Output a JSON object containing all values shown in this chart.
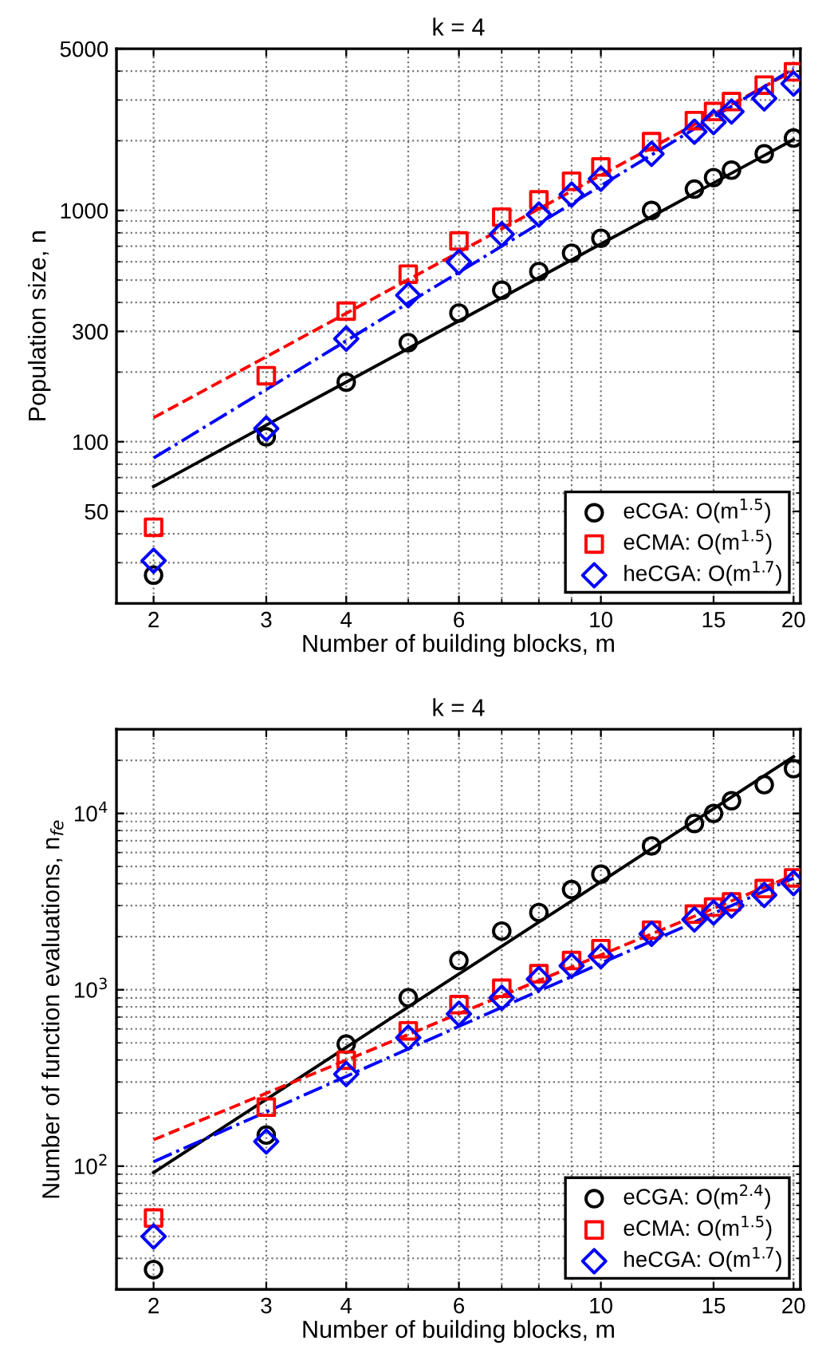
{
  "chart_data": [
    {
      "type": "scatter",
      "title": "k = 4",
      "xlabel": "Number of building blocks, m",
      "ylabel": "Population size, n",
      "log": "xy",
      "grid": true,
      "legend": "bottom right",
      "xlim": [
        1.75,
        20.5
      ],
      "xticks": [
        2,
        3,
        4,
        6,
        10,
        15,
        20
      ],
      "ylim": [
        20,
        5000
      ],
      "yticks": [
        50,
        100,
        300,
        1000,
        5000
      ],
      "x": [
        2,
        3,
        4,
        5,
        6,
        7,
        8,
        9,
        10,
        12,
        14,
        15,
        16,
        18,
        20
      ],
      "series": [
        {
          "name": "eCGA: O(m$^{1.5}$)",
          "color": "#000000",
          "marker": "circle",
          "values": [
            26.5,
            105,
            181,
            268,
            360,
            452,
            544,
            653,
            758,
            1000,
            1236,
            1386,
            1493,
            1757,
            2055
          ]
        },
        {
          "name": "eCMA: O(m$^{1.5}$)",
          "color": "#ff0000",
          "marker": "square",
          "values": [
            42.7,
            193,
            367,
            530,
            738,
            935,
            1111,
            1337,
            1541,
            1983,
            2445,
            2675,
            2955,
            3480,
            3970
          ]
        },
        {
          "name": "heCGA: O(m$^{1.7}$)",
          "color": "#0000ff",
          "marker": "diamond",
          "values": [
            30.6,
            114,
            279,
            430,
            598,
            789,
            960,
            1171,
            1371,
            1757,
            2190,
            2406,
            2675,
            3050,
            3530
          ]
        },
        {
          "type": "line",
          "color": "#000000",
          "line_style": "solid",
          "values": [
            64,
            118,
            181,
            253,
            333,
            419,
            512,
            611,
            716,
            940,
            1185,
            1314,
            1448,
            1728,
            2024
          ]
        },
        {
          "type": "line",
          "color": "#ff0000",
          "line_style": "dashed",
          "values": [
            127,
            233,
            359,
            502,
            660,
            832,
            1016,
            1212,
            1420,
            1866,
            2352,
            2609,
            2874,
            3429,
            4016
          ]
        },
        {
          "type": "line",
          "color": "#0000ff",
          "line_style": "dashdot",
          "values": [
            85,
            168,
            273,
            398,
            540,
            700,
            876,
            1069,
            1278,
            1738,
            2253,
            2530,
            2818,
            3435,
            4100
          ]
        }
      ]
    },
    {
      "type": "scatter",
      "title": "k = 4",
      "xlabel": "Number of building blocks, m",
      "ylabel": "Number of function evaluations, n$_{fe}$",
      "log": "xy",
      "grid": true,
      "legend": "bottom right",
      "xlim": [
        1.75,
        20.5
      ],
      "xticks": [
        2,
        3,
        4,
        6,
        10,
        15,
        20
      ],
      "ylim": [
        20,
        30000
      ],
      "yticks": [
        {
          "value": 100,
          "label": "10$^{2}$"
        },
        {
          "value": 1000,
          "label": "10$^{3}$"
        },
        {
          "value": 10000,
          "label": "10$^{4}$"
        }
      ],
      "x": [
        2,
        3,
        4,
        5,
        6,
        7,
        8,
        9,
        10,
        12,
        14,
        15,
        16,
        18,
        20
      ],
      "series": [
        {
          "name": "eCGA: O(m$^{2.4}$)",
          "color": "#000000",
          "marker": "circle",
          "values": [
            25.9,
            150,
            492,
            901,
            1465,
            2150,
            2740,
            3700,
            4525,
            6540,
            8770,
            10000,
            11800,
            14560,
            17940
          ]
        },
        {
          "name": "eCMA: O(m$^{1.5}$)",
          "color": "#ff0000",
          "marker": "square",
          "values": [
            50.8,
            216,
            399,
            585,
            824,
            1020,
            1233,
            1465,
            1710,
            2180,
            2685,
            2943,
            3150,
            3750,
            4310
          ]
        },
        {
          "name": "heCGA: O(m$^{1.7}$)",
          "color": "#0000ff",
          "marker": "diamond",
          "values": [
            39.9,
            138,
            333,
            535,
            731,
            901,
            1150,
            1368,
            1550,
            2076,
            2505,
            2740,
            3005,
            3450,
            4025
          ]
        },
        {
          "type": "line",
          "color": "#000000",
          "line_style": "solid",
          "values": [
            92,
            239,
            472,
            799,
            1228,
            1766,
            2420,
            3190,
            4094,
            6302,
            9062,
            10630,
            12390,
            16370,
            21000
          ]
        },
        {
          "type": "line",
          "color": "#ff0000",
          "line_style": "dashed",
          "values": [
            141,
            259,
            399,
            557,
            733,
            923,
            1128,
            1346,
            1576,
            2072,
            2611,
            2896,
            3190,
            3807,
            4460
          ]
        },
        {
          "type": "line",
          "color": "#0000ff",
          "line_style": "dashdot",
          "values": [
            106,
            203,
            323,
            462,
            620,
            795,
            985,
            1188,
            1413,
            1887,
            2417,
            2714,
            3000,
            3625,
            4300
          ]
        }
      ]
    }
  ]
}
